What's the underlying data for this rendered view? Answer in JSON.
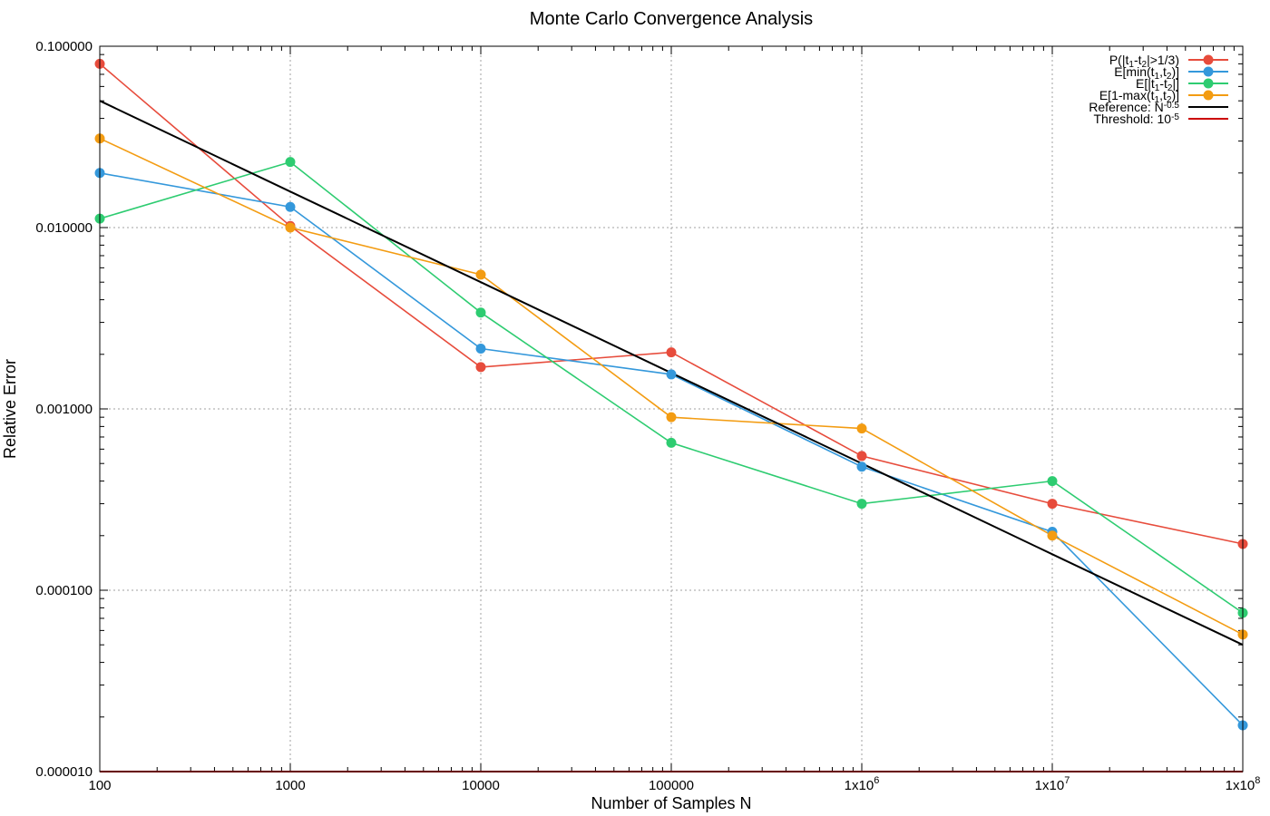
{
  "chart_data": {
    "type": "line",
    "title": "Monte Carlo Convergence Analysis",
    "xlabel": "Number of Samples N",
    "ylabel": "Relative Error",
    "xscale": "log",
    "yscale": "log",
    "xlim": [
      100,
      100000000
    ],
    "ylim": [
      1e-05,
      0.1
    ],
    "grid": true,
    "legend_position": "top-right",
    "x": [
      100,
      1000,
      10000,
      100000,
      1000000,
      10000000,
      100000000
    ],
    "x_tick_labels": [
      {
        "main": "100",
        "exp": ""
      },
      {
        "main": "1000",
        "exp": ""
      },
      {
        "main": "10000",
        "exp": ""
      },
      {
        "main": "100000",
        "exp": ""
      },
      {
        "main": "1x10",
        "exp": "6"
      },
      {
        "main": "1x10",
        "exp": "7"
      },
      {
        "main": "1x10",
        "exp": "8"
      }
    ],
    "y_ticks": [
      0.1,
      0.01,
      0.001,
      0.0001,
      1e-05
    ],
    "y_tick_labels": [
      "0.100000",
      "0.010000",
      "0.001000",
      "0.000100",
      "0.000010"
    ],
    "series": [
      {
        "name": "P(|t1-t2|>1/3)",
        "legend_parts": [
          [
            "P(|t",
            ""
          ],
          [
            "1",
            "sub"
          ],
          [
            "-t",
            ""
          ],
          [
            "2",
            "sub"
          ],
          [
            "|>1/3)",
            ""
          ]
        ],
        "color": "#e74c3c",
        "marker": true,
        "values": [
          0.08,
          0.0102,
          0.0017,
          0.00205,
          0.00055,
          0.0003,
          0.00018
        ]
      },
      {
        "name": "E[min(t1,t2)]",
        "legend_parts": [
          [
            "E[min(t",
            ""
          ],
          [
            "1",
            "sub"
          ],
          [
            ",t",
            ""
          ],
          [
            "2",
            "sub"
          ],
          [
            ")]",
            ""
          ]
        ],
        "color": "#3498db",
        "marker": true,
        "values": [
          0.02,
          0.013,
          0.00215,
          0.00155,
          0.00048,
          0.00021,
          1.8e-05
        ]
      },
      {
        "name": "E[|t1-t2|]",
        "legend_parts": [
          [
            "E[|t",
            ""
          ],
          [
            "1",
            "sub"
          ],
          [
            "-t",
            ""
          ],
          [
            "2",
            "sub"
          ],
          [
            "|]",
            ""
          ]
        ],
        "color": "#2ecc71",
        "marker": true,
        "values": [
          0.0112,
          0.023,
          0.0034,
          0.00065,
          0.0003,
          0.0004,
          7.5e-05
        ]
      },
      {
        "name": "E[1-max(t1,t2)]",
        "legend_parts": [
          [
            "E[1-max(t",
            ""
          ],
          [
            "1",
            "sub"
          ],
          [
            ",t",
            ""
          ],
          [
            "2",
            "sub"
          ],
          [
            ")]",
            ""
          ]
        ],
        "color": "#f39c12",
        "marker": true,
        "values": [
          0.031,
          0.01,
          0.0055,
          0.0009,
          0.00078,
          0.0002,
          5.7e-05
        ]
      },
      {
        "name": "Reference: N^-0.5",
        "legend_parts": [
          [
            "Reference: N",
            ""
          ],
          [
            "-0.5",
            "sup"
          ]
        ],
        "color": "#000000",
        "marker": false,
        "values": [
          0.05,
          0.0158,
          0.005,
          0.00158,
          0.0005,
          0.000158,
          5e-05
        ]
      },
      {
        "name": "Threshold: 10^-5",
        "legend_parts": [
          [
            "Threshold: 10",
            ""
          ],
          [
            "-5",
            "sup"
          ]
        ],
        "color": "#cc0000",
        "marker": false,
        "values": [
          1e-05,
          1e-05,
          1e-05,
          1e-05,
          1e-05,
          1e-05,
          1e-05
        ]
      }
    ]
  }
}
